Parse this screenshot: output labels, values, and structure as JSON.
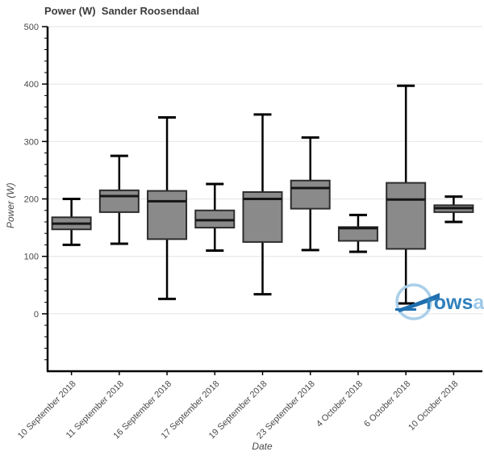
{
  "title": "Power (W)  Sander Roosendaal",
  "chart_data": {
    "type": "box",
    "title": "Power (W)  Sander Roosendaal",
    "xlabel": "Date",
    "ylabel": "Power (W)",
    "ylim": [
      -100,
      500
    ],
    "yticks": [
      0,
      100,
      200,
      300,
      400,
      500
    ],
    "ytick_interval": 100,
    "yminor_interval": 20,
    "grid": "horizontal light-gray lines at major y ticks",
    "legend": "none",
    "categories": [
      "10 September 2018",
      "11 September 2018",
      "16 September 2018",
      "17 September 2018",
      "19 September 2018",
      "23 September 2018",
      "4 October 2018",
      "6 October 2018",
      "10 October 2018"
    ],
    "boxes": [
      {
        "low": 120,
        "q1": 147,
        "median": 157,
        "q3": 168,
        "high": 200
      },
      {
        "low": 122,
        "q1": 177,
        "median": 205,
        "q3": 215,
        "high": 275
      },
      {
        "low": 26,
        "q1": 130,
        "median": 196,
        "q3": 214,
        "high": 342
      },
      {
        "low": 110,
        "q1": 150,
        "median": 163,
        "q3": 180,
        "high": 226
      },
      {
        "low": 34,
        "q1": 125,
        "median": 200,
        "q3": 212,
        "high": 347
      },
      {
        "low": 111,
        "q1": 183,
        "median": 219,
        "q3": 232,
        "high": 307
      },
      {
        "low": 108,
        "q1": 127,
        "median": 149,
        "q3": 151,
        "high": 172
      },
      {
        "low": 18,
        "q1": 113,
        "median": 199,
        "q3": 228,
        "high": 397
      },
      {
        "low": 160,
        "q1": 177,
        "median": 184,
        "q3": 189,
        "high": 204
      }
    ]
  },
  "watermark": {
    "text_dark": "rows",
    "text_light": "andall",
    "circle_color": "#aacfe9",
    "swoosh_color": "#1f6fae",
    "text_dark_color": "#2f80bd",
    "text_light_color": "#9dc8e8"
  },
  "colors": {
    "box_fill": "#8a8a8a",
    "box_border": "#2d2d2d",
    "whisker": "#000000",
    "median": "#161616",
    "grid": "#e7e7e7",
    "axis": "#000000",
    "tick_label": "#4a4a4a",
    "title": "#3b3b3b",
    "background": "#ffffff"
  }
}
